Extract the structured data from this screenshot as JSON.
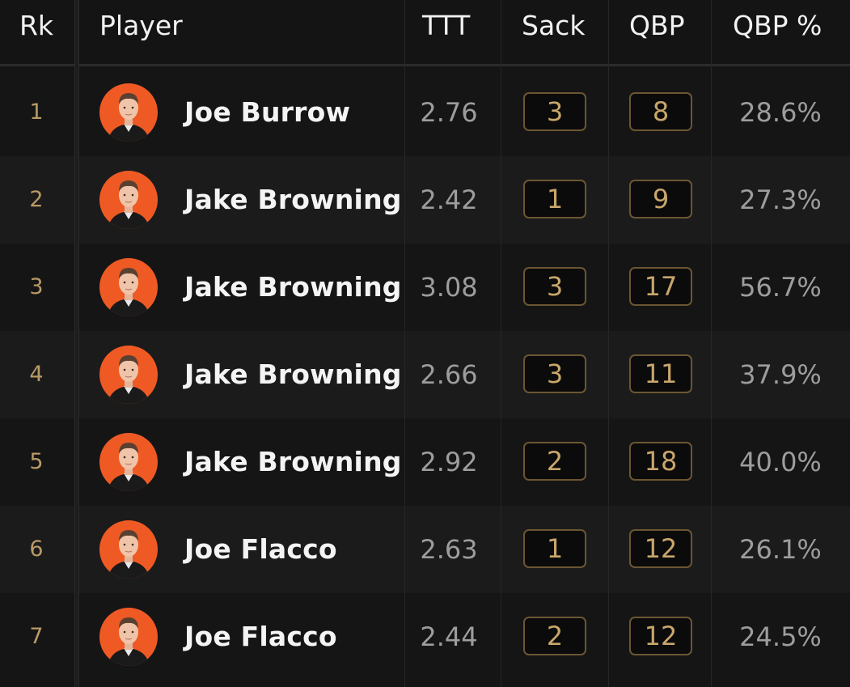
{
  "header": {
    "rk": "Rk",
    "player": "Player",
    "ttt": "TTT",
    "sack": "Sack",
    "qbp": "QBP",
    "qbp_pct": "QBP %"
  },
  "colors": {
    "avatar_bg": "#ef5a24",
    "rank_text": "#b99a66",
    "badge_border": "#6b5632",
    "badge_text": "#c9a66b"
  },
  "rows": [
    {
      "rk": "1",
      "player": "Joe Burrow",
      "ttt": "2.76",
      "sack": "3",
      "qbp": "8",
      "qbp_pct": "28.6%"
    },
    {
      "rk": "2",
      "player": "Jake Browning",
      "ttt": "2.42",
      "sack": "1",
      "qbp": "9",
      "qbp_pct": "27.3%"
    },
    {
      "rk": "3",
      "player": "Jake Browning",
      "ttt": "3.08",
      "sack": "3",
      "qbp": "17",
      "qbp_pct": "56.7%"
    },
    {
      "rk": "4",
      "player": "Jake Browning",
      "ttt": "2.66",
      "sack": "3",
      "qbp": "11",
      "qbp_pct": "37.9%"
    },
    {
      "rk": "5",
      "player": "Jake Browning",
      "ttt": "2.92",
      "sack": "2",
      "qbp": "18",
      "qbp_pct": "40.0%"
    },
    {
      "rk": "6",
      "player": "Joe Flacco",
      "ttt": "2.63",
      "sack": "1",
      "qbp": "12",
      "qbp_pct": "26.1%"
    },
    {
      "rk": "7",
      "player": "Joe Flacco",
      "ttt": "2.44",
      "sack": "2",
      "qbp": "12",
      "qbp_pct": "24.5%"
    }
  ]
}
